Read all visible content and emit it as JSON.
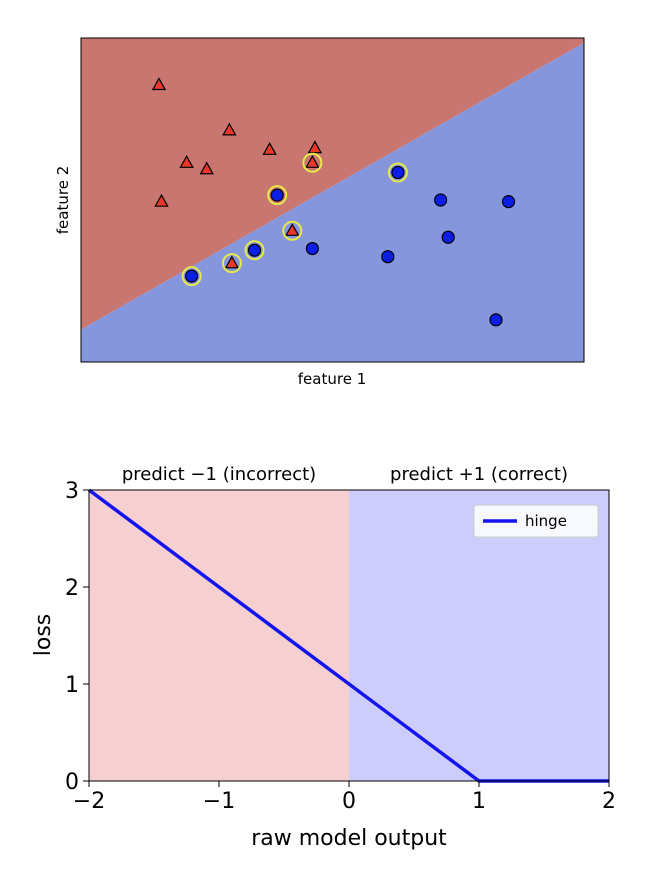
{
  "chart_data": [
    {
      "type": "scatter",
      "title": "",
      "xlabel": "feature 1",
      "ylabel": "feature 2",
      "ticks_visible": false,
      "grid": false,
      "xlim": [
        0,
        10
      ],
      "ylim": [
        0,
        10
      ],
      "decision_boundary": {
        "point_a": [
          0,
          1.0
        ],
        "point_b": [
          10,
          9.85
        ],
        "region_above_color": "#c97671",
        "region_above_class": "class -1",
        "region_below_color": "#8596dc",
        "region_below_class": "class +1"
      },
      "series": [
        {
          "marker": "triangle",
          "color": "#e8382a",
          "points": [
            [
              1.55,
              8.55
            ],
            [
              2.95,
              7.15
            ],
            [
              3.75,
              6.55
            ],
            [
              2.1,
              6.15
            ],
            [
              2.5,
              5.95
            ],
            [
              4.65,
              6.6
            ],
            [
              4.6,
              6.15
            ],
            [
              1.6,
              4.95
            ],
            [
              4.2,
              4.05
            ],
            [
              3.0,
              3.05
            ]
          ]
        },
        {
          "marker": "circle",
          "color": "#0a1ee6",
          "points": [
            [
              6.3,
              5.85
            ],
            [
              3.9,
              5.15
            ],
            [
              7.15,
              5.0
            ],
            [
              8.5,
              4.95
            ],
            [
              7.3,
              3.85
            ],
            [
              4.6,
              3.5
            ],
            [
              3.45,
              3.45
            ],
            [
              6.1,
              3.25
            ],
            [
              2.2,
              2.65
            ],
            [
              8.25,
              1.3
            ]
          ]
        }
      ],
      "highlighted_points": [
        [
          4.6,
          6.15
        ],
        [
          6.3,
          5.85
        ],
        [
          3.9,
          5.15
        ],
        [
          4.2,
          4.05
        ],
        [
          3.0,
          3.05
        ],
        [
          3.45,
          3.45
        ],
        [
          2.2,
          2.65
        ]
      ],
      "highlight_color": "#e8e84a"
    },
    {
      "type": "line",
      "title": "",
      "xlabel": "raw model output",
      "ylabel": "loss",
      "xlim": [
        -2,
        2
      ],
      "ylim": [
        0,
        3
      ],
      "x_ticks": [
        -2,
        -1,
        0,
        1,
        2
      ],
      "x_tick_labels": [
        "−2",
        "−1",
        "0",
        "1",
        "2"
      ],
      "y_ticks": [
        0,
        1,
        2,
        3
      ],
      "y_tick_labels": [
        "0",
        "1",
        "2",
        "3"
      ],
      "grid": false,
      "legend": {
        "placement": "top-right"
      },
      "regions": [
        {
          "label": "predict −1 (incorrect)",
          "from": -2,
          "to": 0,
          "color": "#f6cfd0"
        },
        {
          "label": "predict +1 (correct)",
          "from": 0,
          "to": 2,
          "color": "#cccdfa"
        }
      ],
      "series": [
        {
          "name": "hinge",
          "color": "#1414ee",
          "x": [
            -2,
            -1,
            0,
            1,
            2
          ],
          "y": [
            3,
            2,
            1,
            0,
            0
          ]
        }
      ]
    }
  ]
}
